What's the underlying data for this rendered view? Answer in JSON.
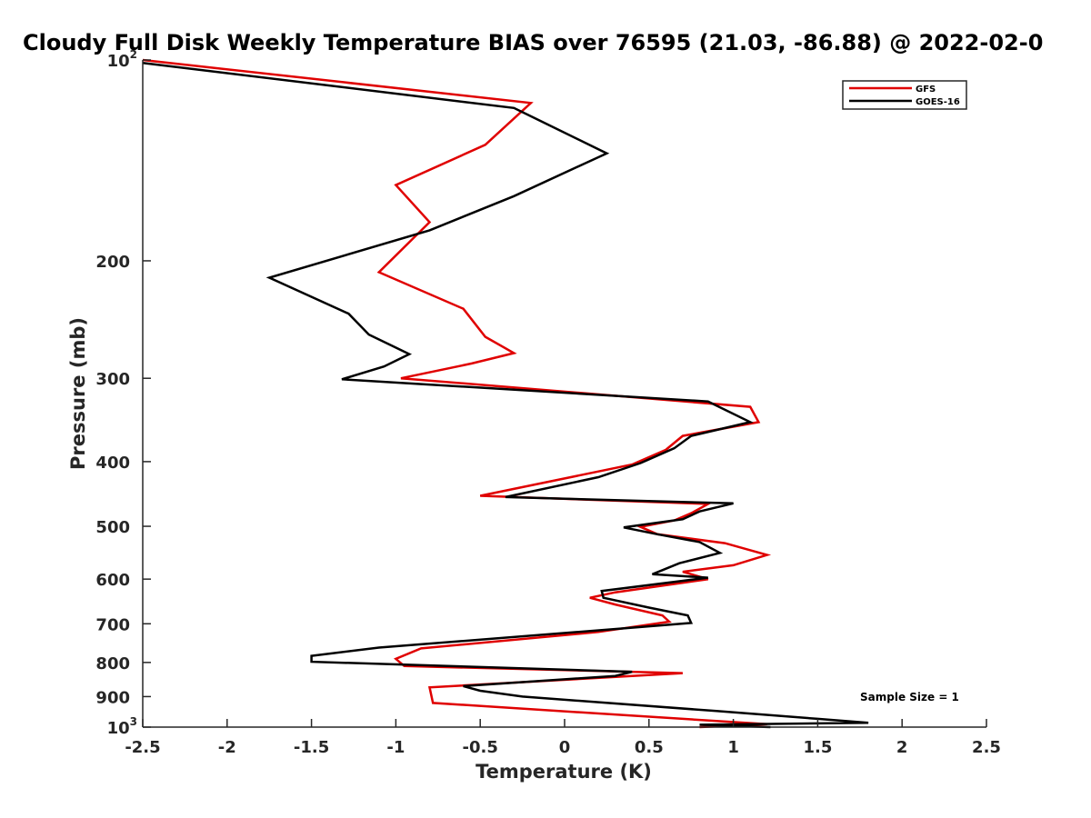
{
  "chart_data": {
    "type": "line",
    "title": "Cloudy Full Disk Weekly Temperature BIAS over 76595 (21.03, -86.88) @ 2022-02-0",
    "xlabel": "Temperature (K)",
    "ylabel": "Pressure (mb)",
    "xlim": [
      -2.5,
      2.5
    ],
    "ylim": [
      100,
      1000
    ],
    "y_scale": "log",
    "y_reversed": true,
    "grid": false,
    "legend_position": "top-right",
    "x_ticks": [
      -2.5,
      -2,
      -1.5,
      -1,
      -0.5,
      0,
      0.5,
      1,
      1.5,
      2,
      2.5
    ],
    "x_tick_labels": [
      "-2.5",
      "-2",
      "-1.5",
      "-1",
      "-0.5",
      "0",
      "0.5",
      "1",
      "1.5",
      "2",
      "2.5"
    ],
    "y_ticks": [
      {
        "value": 100,
        "label": "10",
        "exp": "2"
      },
      {
        "value": 200,
        "label": "200",
        "exp": ""
      },
      {
        "value": 300,
        "label": "300",
        "exp": ""
      },
      {
        "value": 400,
        "label": "400",
        "exp": ""
      },
      {
        "value": 500,
        "label": "500",
        "exp": ""
      },
      {
        "value": 600,
        "label": "600",
        "exp": ""
      },
      {
        "value": 700,
        "label": "700",
        "exp": ""
      },
      {
        "value": 800,
        "label": "800",
        "exp": ""
      },
      {
        "value": 900,
        "label": "900",
        "exp": ""
      },
      {
        "value": 1000,
        "label": "10",
        "exp": "3"
      }
    ],
    "annotation": "Sample Size = 1",
    "series": [
      {
        "name": "GFS",
        "color": "#e00000",
        "points": [
          [
            -2.5,
            100
          ],
          [
            -0.2,
            116
          ],
          [
            -0.47,
            134
          ],
          [
            -1.0,
            154
          ],
          [
            -0.8,
            175
          ],
          [
            -1.1,
            208
          ],
          [
            -0.6,
            236
          ],
          [
            -0.47,
            260
          ],
          [
            -0.3,
            275
          ],
          [
            -0.55,
            285
          ],
          [
            -0.97,
            300
          ],
          [
            1.1,
            331
          ],
          [
            1.15,
            349
          ],
          [
            0.7,
            366
          ],
          [
            0.6,
            384
          ],
          [
            0.4,
            404
          ],
          [
            -0.5,
            450
          ],
          [
            0.85,
            463
          ],
          [
            0.75,
            478
          ],
          [
            0.65,
            490
          ],
          [
            0.45,
            501
          ],
          [
            0.55,
            514
          ],
          [
            0.95,
            530
          ],
          [
            1.2,
            552
          ],
          [
            1.0,
            572
          ],
          [
            0.7,
            585
          ],
          [
            0.85,
            600
          ],
          [
            0.3,
            628
          ],
          [
            0.15,
            640
          ],
          [
            0.3,
            655
          ],
          [
            0.58,
            680
          ],
          [
            0.62,
            695
          ],
          [
            0.2,
            720
          ],
          [
            -0.85,
            762
          ],
          [
            -1.0,
            790
          ],
          [
            -0.95,
            810
          ],
          [
            0.7,
            830
          ],
          [
            -0.8,
            872
          ],
          [
            -0.78,
            920
          ],
          [
            1.2,
            990
          ],
          [
            0.8,
            1000
          ]
        ]
      },
      {
        "name": "GOES-16",
        "color": "#000000",
        "points": [
          [
            -2.5,
            101
          ],
          [
            -0.3,
            118
          ],
          [
            0.25,
            138
          ],
          [
            -0.3,
            160
          ],
          [
            -0.8,
            180
          ],
          [
            -1.75,
            212
          ],
          [
            -1.28,
            240
          ],
          [
            -1.16,
            258
          ],
          [
            -0.92,
            276
          ],
          [
            -1.07,
            288
          ],
          [
            -1.32,
            301
          ],
          [
            0.85,
            325
          ],
          [
            1.1,
            349
          ],
          [
            0.75,
            366
          ],
          [
            0.65,
            382
          ],
          [
            0.45,
            402
          ],
          [
            0.2,
            422
          ],
          [
            -0.35,
            452
          ],
          [
            1.0,
            462
          ],
          [
            0.8,
            475
          ],
          [
            0.7,
            488
          ],
          [
            0.35,
            502
          ],
          [
            0.55,
            514
          ],
          [
            0.8,
            528
          ],
          [
            0.92,
            548
          ],
          [
            0.68,
            568
          ],
          [
            0.52,
            590
          ],
          [
            0.85,
            597
          ],
          [
            0.22,
            625
          ],
          [
            0.23,
            640
          ],
          [
            0.5,
            662
          ],
          [
            0.73,
            680
          ],
          [
            0.75,
            698
          ],
          [
            0.45,
            708
          ],
          [
            -1.1,
            760
          ],
          [
            -1.5,
            782
          ],
          [
            -1.5,
            798
          ],
          [
            0.4,
            826
          ],
          [
            0.3,
            838
          ],
          [
            -0.6,
            868
          ],
          [
            -0.5,
            882
          ],
          [
            -0.25,
            900
          ],
          [
            0.9,
            946
          ],
          [
            1.5,
            972
          ],
          [
            1.8,
            985
          ],
          [
            0.8,
            992
          ],
          [
            1.22,
            1000
          ]
        ]
      }
    ]
  }
}
